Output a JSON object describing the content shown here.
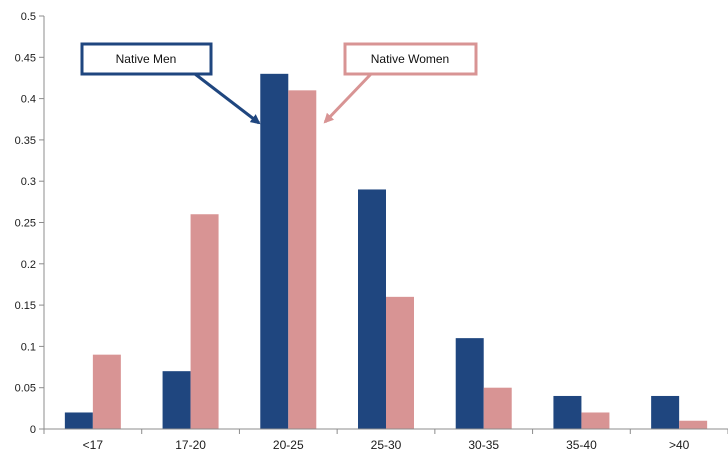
{
  "chart_data": {
    "type": "bar",
    "title": "",
    "xlabel": "",
    "ylabel": "",
    "categories": [
      "<17",
      "17-20",
      "20-25",
      "25-30",
      "30-35",
      "35-40",
      ">40"
    ],
    "series": [
      {
        "name": "Native Men",
        "color": "#1f467f",
        "values": [
          0.02,
          0.07,
          0.43,
          0.29,
          0.11,
          0.04,
          0.04
        ]
      },
      {
        "name": "Native Women",
        "color": "#d89494",
        "values": [
          0.09,
          0.26,
          0.41,
          0.16,
          0.05,
          0.02,
          0.01
        ]
      }
    ],
    "ylim": [
      0,
      0.5
    ],
    "yticks": [
      "0",
      "0.05",
      "0.1",
      "0.15",
      "0.2",
      "0.25",
      "0.3",
      "0.35",
      "0.4",
      "0.45",
      "0.5"
    ],
    "legend_placement": "callouts-top-center",
    "grid": false
  }
}
